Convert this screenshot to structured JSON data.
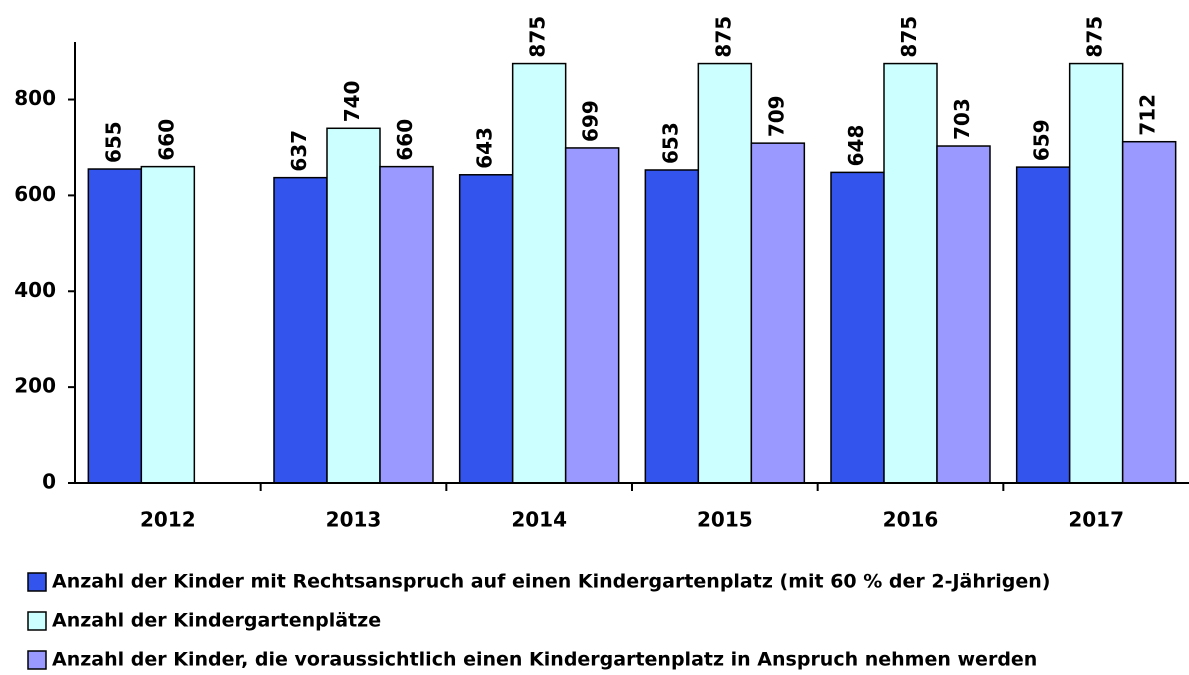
{
  "chart_data": {
    "type": "bar",
    "categories": [
      "2012",
      "2013",
      "2014",
      "2015",
      "2016",
      "2017"
    ],
    "series": [
      {
        "name": "Anzahl der Kinder mit Rechtsanspruch auf einen Kindergartenplatz (mit 60 % der 2-Jährigen)",
        "color": "#3355ee",
        "values": [
          655,
          637,
          643,
          653,
          648,
          659
        ]
      },
      {
        "name": "Anzahl der Kindergartenplätze",
        "color": "#ccffff",
        "values": [
          660,
          740,
          875,
          875,
          875,
          875
        ]
      },
      {
        "name": "Anzahl der Kinder, die voraussichtlich einen Kindergartenplatz in Anspruch nehmen werden",
        "color": "#9999ff",
        "values": [
          null,
          660,
          699,
          709,
          703,
          712
        ]
      }
    ],
    "ylim": [
      0,
      920
    ],
    "yticks": [
      0,
      200,
      400,
      600,
      800
    ],
    "grid": false,
    "legend": "bottom"
  }
}
